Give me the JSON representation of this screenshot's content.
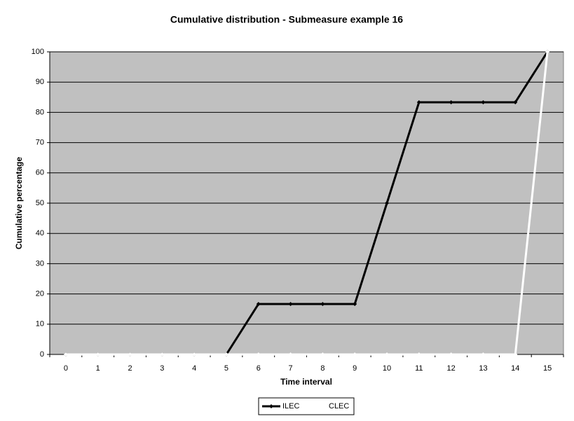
{
  "chart_data": {
    "type": "line",
    "title": "Cumulative distribution - Submeasure example 16",
    "x_label": "Time interval",
    "y_label": "Cumulative percentage",
    "categories": [
      "0",
      "1",
      "2",
      "3",
      "4",
      "5",
      "6",
      "7",
      "8",
      "9",
      "10",
      "11",
      "12",
      "13",
      "14",
      "15"
    ],
    "series": [
      {
        "name": "ILEC",
        "color": "#000000",
        "values": [
          0,
          0,
          0,
          0,
          0,
          0,
          16.67,
          16.67,
          16.67,
          16.67,
          50,
          83.33,
          83.33,
          83.33,
          83.33,
          100
        ]
      },
      {
        "name": "CLEC",
        "color": "#ffffff",
        "values": [
          0,
          0,
          0,
          0,
          0,
          0,
          0,
          0,
          0,
          0,
          0,
          0,
          0,
          0,
          0,
          100
        ]
      }
    ],
    "ylim": [
      0,
      100
    ],
    "yticks": [
      0,
      10,
      20,
      30,
      40,
      50,
      60,
      70,
      80,
      90,
      100
    ],
    "grid": true,
    "legend": "bottom"
  }
}
